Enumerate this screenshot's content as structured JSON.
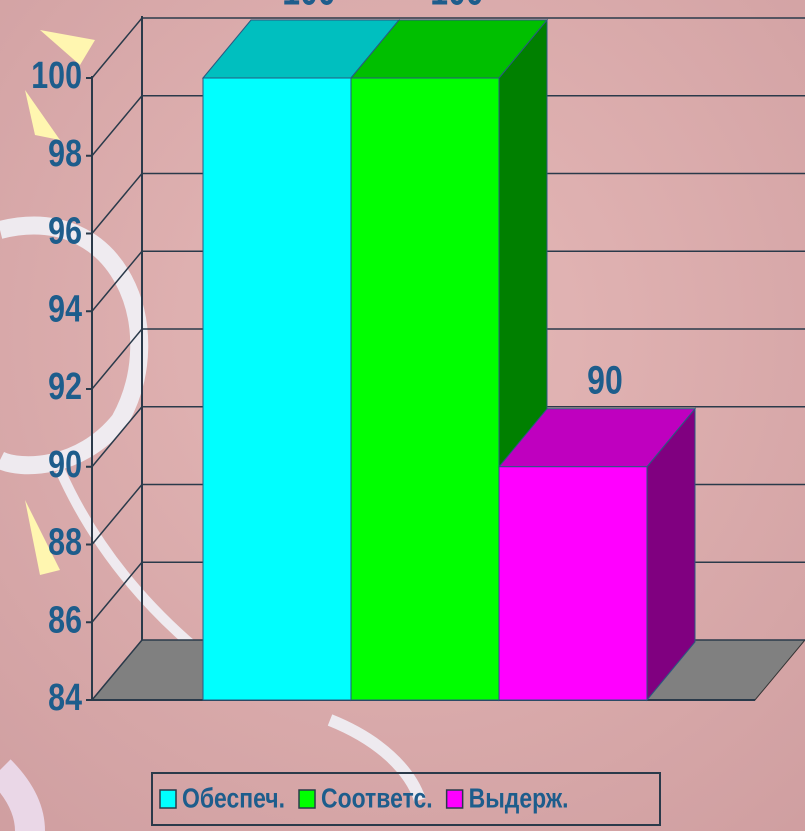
{
  "chart_data": {
    "type": "bar3d",
    "series": [
      {
        "name": "Обеспеч.",
        "color": "#00ffff",
        "values": [
          100
        ]
      },
      {
        "name": "Соответс.",
        "color": "#00ff00",
        "values": [
          100
        ]
      },
      {
        "name": "Выдерж.",
        "color": "#ff00ff",
        "values": [
          90
        ]
      }
    ],
    "ylim": [
      84,
      100
    ],
    "yticks": [
      84,
      86,
      88,
      90,
      92,
      94,
      96,
      98,
      100
    ],
    "grid": true,
    "legend": "bottom"
  }
}
